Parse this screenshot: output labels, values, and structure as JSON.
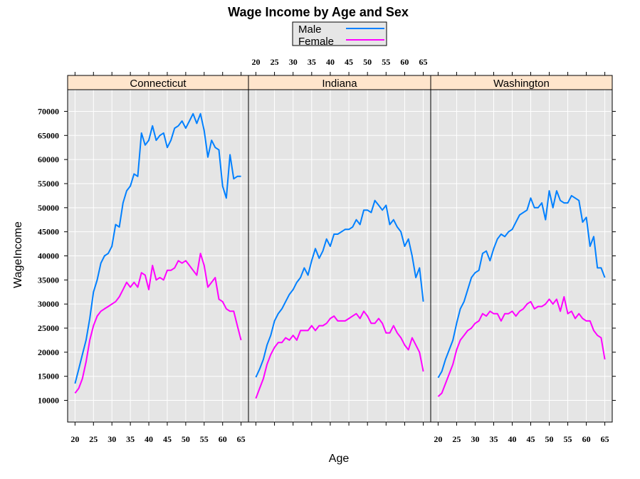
{
  "chart_data": {
    "type": "line",
    "title": "Wage Income by Age and Sex",
    "xlabel": "Age",
    "ylabel": "WageIncome",
    "xlim": [
      18,
      67
    ],
    "ylim": [
      5500,
      74500
    ],
    "x_ticks": [
      20,
      25,
      30,
      35,
      40,
      45,
      50,
      55,
      60,
      65
    ],
    "y_ticks": [
      10000,
      15000,
      20000,
      25000,
      30000,
      35000,
      40000,
      45000,
      50000,
      55000,
      60000,
      65000,
      70000
    ],
    "grid": true,
    "legend_position": "top",
    "legend": [
      {
        "name": "Male",
        "color": "#0080ff"
      },
      {
        "name": "Female",
        "color": "#ff00ff"
      }
    ],
    "panels": [
      {
        "strip": "Connecticut",
        "series": [
          {
            "name": "Male",
            "color": "#0080ff",
            "x": [
              20,
              21,
              22,
              23,
              24,
              25,
              26,
              27,
              28,
              29,
              30,
              31,
              32,
              33,
              34,
              35,
              36,
              37,
              38,
              39,
              40,
              41,
              42,
              43,
              44,
              45,
              46,
              47,
              48,
              49,
              50,
              51,
              52,
              53,
              54,
              55,
              56,
              57,
              58,
              59,
              60,
              61,
              62,
              63,
              64,
              65
            ],
            "y": [
              13500,
              16500,
              19500,
              22500,
              27000,
              32500,
              35000,
              38500,
              40000,
              40500,
              42000,
              46500,
              46000,
              51000,
              53500,
              54500,
              57000,
              56500,
              65500,
              63000,
              64000,
              67000,
              64000,
              65000,
              65500,
              62500,
              64000,
              66500,
              67000,
              68000,
              66500,
              68000,
              69500,
              67500,
              69500,
              66000,
              60500,
              64000,
              62500,
              62000,
              54500,
              52000,
              61000,
              56000,
              56500,
              56500
            ]
          },
          {
            "name": "Female",
            "color": "#ff00ff",
            "x": [
              20,
              21,
              22,
              23,
              24,
              25,
              26,
              27,
              28,
              29,
              30,
              31,
              32,
              33,
              34,
              35,
              36,
              37,
              38,
              39,
              40,
              41,
              42,
              43,
              44,
              45,
              46,
              47,
              48,
              49,
              50,
              51,
              52,
              53,
              54,
              55,
              56,
              57,
              58,
              59,
              60,
              61,
              62,
              63,
              64,
              65
            ],
            "y": [
              11500,
              12500,
              14500,
              18000,
              22500,
              25500,
              27500,
              28500,
              29000,
              29500,
              30000,
              30500,
              31500,
              33000,
              34500,
              33500,
              34500,
              33500,
              36500,
              36000,
              33000,
              38000,
              35000,
              35500,
              35000,
              37000,
              37000,
              37500,
              39000,
              38500,
              39000,
              38000,
              37000,
              36000,
              40500,
              38000,
              33500,
              34500,
              35500,
              31000,
              30500,
              29000,
              28500,
              28500,
              25500,
              22500
            ]
          }
        ]
      },
      {
        "strip": "Indiana",
        "series": [
          {
            "name": "Male",
            "color": "#0080ff",
            "x": [
              20,
              21,
              22,
              23,
              24,
              25,
              26,
              27,
              28,
              29,
              30,
              31,
              32,
              33,
              34,
              35,
              36,
              37,
              38,
              39,
              40,
              41,
              42,
              43,
              44,
              45,
              46,
              47,
              48,
              49,
              50,
              51,
              52,
              53,
              54,
              55,
              56,
              57,
              58,
              59,
              60,
              61,
              62,
              63,
              64,
              65
            ],
            "y": [
              14800,
              16500,
              18500,
              21500,
              23500,
              26500,
              28000,
              29000,
              30500,
              32000,
              33000,
              34500,
              35500,
              37500,
              36000,
              39000,
              41500,
              39500,
              41000,
              43500,
              42000,
              44500,
              44500,
              45000,
              45500,
              45500,
              46000,
              47500,
              46500,
              49500,
              49500,
              49000,
              51500,
              50500,
              49500,
              50500,
              46500,
              47500,
              46000,
              45000,
              42000,
              43500,
              40000,
              35500,
              37500,
              30500
            ]
          },
          {
            "name": "Female",
            "color": "#ff00ff",
            "x": [
              20,
              21,
              22,
              23,
              24,
              25,
              26,
              27,
              28,
              29,
              30,
              31,
              32,
              33,
              34,
              35,
              36,
              37,
              38,
              39,
              40,
              41,
              42,
              43,
              44,
              45,
              46,
              47,
              48,
              49,
              50,
              51,
              52,
              53,
              54,
              55,
              56,
              57,
              58,
              59,
              60,
              61,
              62,
              63,
              64,
              65
            ],
            "y": [
              10400,
              12500,
              14500,
              17500,
              19500,
              21000,
              22000,
              22000,
              23000,
              22500,
              23500,
              22500,
              24500,
              24500,
              24500,
              25500,
              24500,
              25500,
              25500,
              26000,
              27000,
              27500,
              26500,
              26500,
              26500,
              27000,
              27500,
              28000,
              27000,
              28500,
              27500,
              26000,
              26000,
              27000,
              26000,
              24000,
              24000,
              25500,
              24000,
              23000,
              21500,
              20500,
              23000,
              21500,
              20000,
              16000
            ]
          }
        ]
      },
      {
        "strip": "Washington",
        "series": [
          {
            "name": "Male",
            "color": "#0080ff",
            "x": [
              20,
              21,
              22,
              23,
              24,
              25,
              26,
              27,
              28,
              29,
              30,
              31,
              32,
              33,
              34,
              35,
              36,
              37,
              38,
              39,
              40,
              41,
              42,
              43,
              44,
              45,
              46,
              47,
              48,
              49,
              50,
              51,
              52,
              53,
              54,
              55,
              56,
              57,
              58,
              59,
              60,
              61,
              62,
              63,
              64,
              65
            ],
            "y": [
              14700,
              16000,
              18500,
              20500,
              22500,
              26000,
              29000,
              30500,
              33000,
              35500,
              36500,
              37000,
              40500,
              41000,
              39000,
              41500,
              43500,
              44500,
              44000,
              45000,
              45500,
              47000,
              48500,
              49000,
              49500,
              52000,
              50000,
              50000,
              51000,
              47500,
              53500,
              50000,
              53500,
              51500,
              51000,
              51000,
              52500,
              52000,
              51500,
              47000,
              48000,
              42000,
              44000,
              37500,
              37500,
              35500
            ]
          },
          {
            "name": "Female",
            "color": "#ff00ff",
            "x": [
              20,
              21,
              22,
              23,
              24,
              25,
              26,
              27,
              28,
              29,
              30,
              31,
              32,
              33,
              34,
              35,
              36,
              37,
              38,
              39,
              40,
              41,
              42,
              43,
              44,
              45,
              46,
              47,
              48,
              49,
              50,
              51,
              52,
              53,
              54,
              55,
              56,
              57,
              58,
              59,
              60,
              61,
              62,
              63,
              64,
              65
            ],
            "y": [
              10800,
              11500,
              13500,
              15500,
              17500,
              20500,
              22500,
              23500,
              24500,
              25000,
              26000,
              26500,
              28000,
              27500,
              28500,
              28000,
              28000,
              26500,
              28000,
              28000,
              28500,
              27500,
              28500,
              29000,
              30000,
              30500,
              29000,
              29500,
              29500,
              30000,
              31000,
              30000,
              31000,
              28500,
              31500,
              28000,
              28500,
              27000,
              28000,
              27000,
              26500,
              26500,
              24500,
              23500,
              23000,
              18500
            ]
          }
        ]
      }
    ]
  }
}
